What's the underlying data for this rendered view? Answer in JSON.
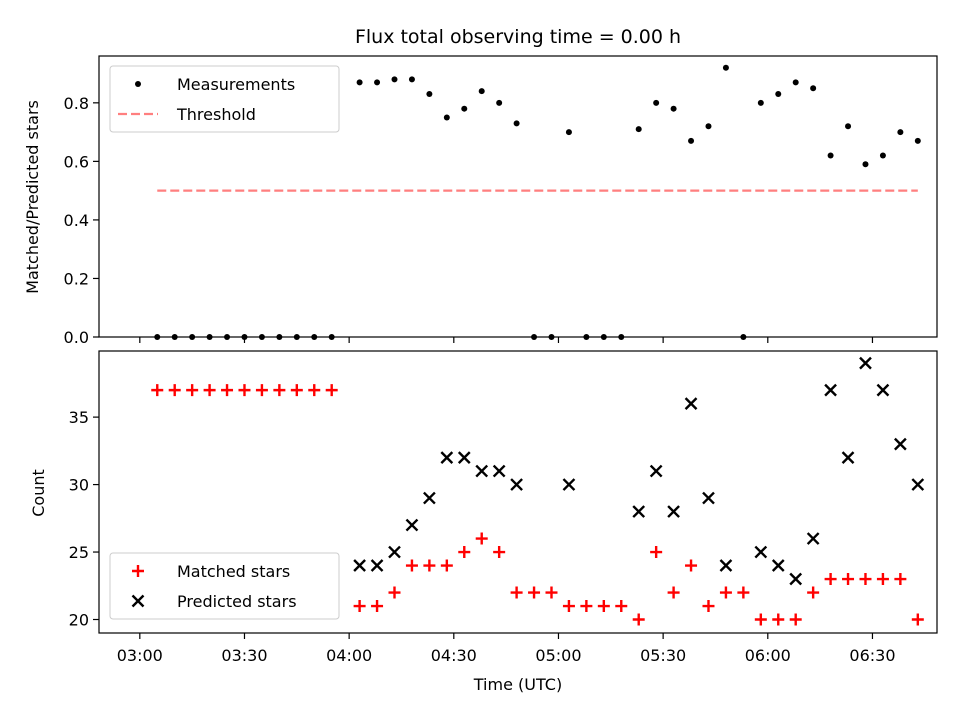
{
  "chart_data": [
    {
      "type": "scatter",
      "title": "Flux total observing time = 0.00 h",
      "xlabel": "",
      "ylabel": "Matched/Predicted stars",
      "ylim": [
        0,
        0.96
      ],
      "yticks": [
        "0.0",
        "0.2",
        "0.4",
        "0.6",
        "0.8"
      ],
      "grid": false,
      "legend_position": "top-left",
      "series": [
        {
          "name": "Measurements",
          "marker": "dot",
          "color": "#000000",
          "points": [
            [
              "03:05",
              0.0
            ],
            [
              "03:10",
              0.0
            ],
            [
              "03:15",
              0.0
            ],
            [
              "03:20",
              0.0
            ],
            [
              "03:25",
              0.0
            ],
            [
              "03:30",
              0.0
            ],
            [
              "03:35",
              0.0
            ],
            [
              "03:40",
              0.0
            ],
            [
              "03:45",
              0.0
            ],
            [
              "03:50",
              0.0
            ],
            [
              "03:55",
              0.0
            ],
            [
              "04:03",
              0.87
            ],
            [
              "04:08",
              0.87
            ],
            [
              "04:13",
              0.88
            ],
            [
              "04:18",
              0.88
            ],
            [
              "04:23",
              0.83
            ],
            [
              "04:28",
              0.75
            ],
            [
              "04:33",
              0.78
            ],
            [
              "04:38",
              0.84
            ],
            [
              "04:43",
              0.8
            ],
            [
              "04:48",
              0.73
            ],
            [
              "04:53",
              0.0
            ],
            [
              "04:58",
              0.0
            ],
            [
              "05:03",
              0.7
            ],
            [
              "05:08",
              0.0
            ],
            [
              "05:13",
              0.0
            ],
            [
              "05:18",
              0.0
            ],
            [
              "05:23",
              0.71
            ],
            [
              "05:28",
              0.8
            ],
            [
              "05:33",
              0.78
            ],
            [
              "05:38",
              0.67
            ],
            [
              "05:43",
              0.72
            ],
            [
              "05:48",
              0.92
            ],
            [
              "05:53",
              0.0
            ],
            [
              "05:58",
              0.8
            ],
            [
              "06:03",
              0.83
            ],
            [
              "06:08",
              0.87
            ],
            [
              "06:13",
              0.85
            ],
            [
              "06:18",
              0.62
            ],
            [
              "06:23",
              0.72
            ],
            [
              "06:28",
              0.59
            ],
            [
              "06:33",
              0.62
            ],
            [
              "06:38",
              0.7
            ],
            [
              "06:43",
              0.67
            ]
          ]
        },
        {
          "name": "Threshold",
          "marker": "dashed-line",
          "color": "#ff7f7f",
          "points": [
            [
              "03:05",
              0.5
            ],
            [
              "06:43",
              0.5
            ]
          ]
        }
      ]
    },
    {
      "type": "scatter",
      "title": "",
      "xlabel": "Time (UTC)",
      "ylabel": "Count",
      "ylim": [
        19,
        39.9
      ],
      "yticks": [
        "20",
        "25",
        "30",
        "35"
      ],
      "xticks": [
        "03:00",
        "03:30",
        "04:00",
        "04:30",
        "05:00",
        "05:30",
        "06:00",
        "06:30"
      ],
      "grid": false,
      "legend_position": "bottom-left",
      "series": [
        {
          "name": "Matched stars",
          "marker": "plus",
          "color": "#ff0000",
          "points": [
            [
              "03:05",
              37
            ],
            [
              "03:10",
              37
            ],
            [
              "03:15",
              37
            ],
            [
              "03:20",
              37
            ],
            [
              "03:25",
              37
            ],
            [
              "03:30",
              37
            ],
            [
              "03:35",
              37
            ],
            [
              "03:40",
              37
            ],
            [
              "03:45",
              37
            ],
            [
              "03:50",
              37
            ],
            [
              "03:55",
              37
            ],
            [
              "04:03",
              21
            ],
            [
              "04:08",
              21
            ],
            [
              "04:13",
              22
            ],
            [
              "04:18",
              24
            ],
            [
              "04:23",
              24
            ],
            [
              "04:28",
              24
            ],
            [
              "04:33",
              25
            ],
            [
              "04:38",
              26
            ],
            [
              "04:43",
              25
            ],
            [
              "04:48",
              22
            ],
            [
              "04:53",
              22
            ],
            [
              "04:58",
              22
            ],
            [
              "05:03",
              21
            ],
            [
              "05:08",
              21
            ],
            [
              "05:13",
              21
            ],
            [
              "05:18",
              21
            ],
            [
              "05:23",
              20
            ],
            [
              "05:28",
              25
            ],
            [
              "05:33",
              22
            ],
            [
              "05:38",
              24
            ],
            [
              "05:43",
              21
            ],
            [
              "05:48",
              22
            ],
            [
              "05:53",
              22
            ],
            [
              "05:58",
              20
            ],
            [
              "06:03",
              20
            ],
            [
              "06:08",
              20
            ],
            [
              "06:13",
              22
            ],
            [
              "06:18",
              23
            ],
            [
              "06:23",
              23
            ],
            [
              "06:28",
              23
            ],
            [
              "06:33",
              23
            ],
            [
              "06:38",
              23
            ],
            [
              "06:43",
              20
            ]
          ]
        },
        {
          "name": "Predicted stars",
          "marker": "x",
          "color": "#000000",
          "points": [
            [
              "04:03",
              24
            ],
            [
              "04:08",
              24
            ],
            [
              "04:13",
              25
            ],
            [
              "04:18",
              27
            ],
            [
              "04:23",
              29
            ],
            [
              "04:28",
              32
            ],
            [
              "04:33",
              32
            ],
            [
              "04:38",
              31
            ],
            [
              "04:43",
              31
            ],
            [
              "04:48",
              30
            ],
            [
              "05:03",
              30
            ],
            [
              "05:23",
              28
            ],
            [
              "05:28",
              31
            ],
            [
              "05:33",
              28
            ],
            [
              "05:38",
              36
            ],
            [
              "05:43",
              29
            ],
            [
              "05:48",
              24
            ],
            [
              "05:58",
              25
            ],
            [
              "06:03",
              24
            ],
            [
              "06:08",
              23
            ],
            [
              "06:13",
              26
            ],
            [
              "06:18",
              37
            ],
            [
              "06:23",
              32
            ],
            [
              "06:28",
              39
            ],
            [
              "06:33",
              37
            ],
            [
              "06:38",
              33
            ],
            [
              "06:43",
              30
            ]
          ]
        }
      ]
    }
  ]
}
